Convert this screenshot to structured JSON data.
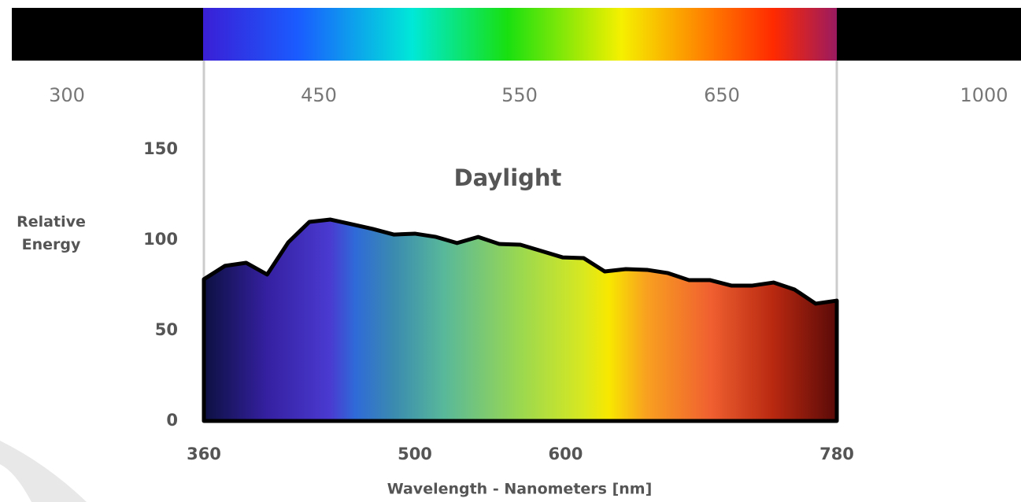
{
  "chart_data": {
    "type": "area",
    "title": "Daylight",
    "xlabel": "Wavelength - Nanometers [nm]",
    "ylabel": "Relative Energy",
    "scale_labels": [
      "300",
      "450",
      "550",
      "650",
      "1000"
    ],
    "x": [
      360,
      374,
      388,
      402,
      416,
      430,
      444,
      458,
      472,
      486,
      500,
      514,
      528,
      542,
      556,
      570,
      584,
      598,
      612,
      626,
      640,
      654,
      668,
      682,
      696,
      710,
      724,
      738,
      752,
      766,
      780
    ],
    "values": [
      78.3,
      85.7,
      87.4,
      80.9,
      98.7,
      110,
      111.3,
      108.7,
      106.1,
      103,
      103.5,
      101.7,
      98.3,
      101.7,
      97.8,
      97.4,
      93.9,
      90.4,
      90,
      82.6,
      83.9,
      83.5,
      81.7,
      77.8,
      77.8,
      74.8,
      74.8,
      76.5,
      72.6,
      64.8,
      66.5
    ],
    "line_color": "#000000",
    "xlim": [
      360,
      780
    ],
    "xticks": [
      360,
      500,
      600,
      780
    ],
    "ylim": [
      0,
      150
    ],
    "yticks": [
      0,
      50,
      100,
      150
    ]
  }
}
